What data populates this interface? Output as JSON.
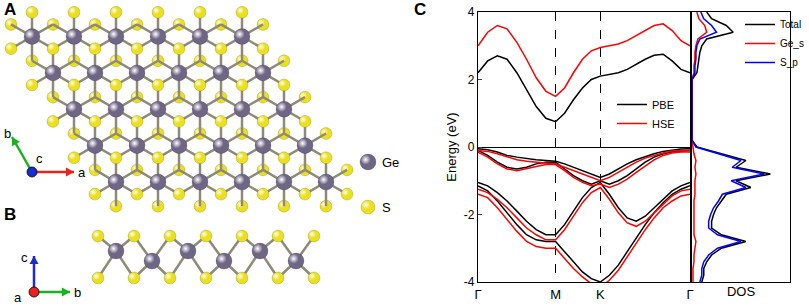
{
  "diagram": {
    "panel_labels": [
      "A",
      "B",
      "C"
    ],
    "atoms": [
      {
        "name": "Ge",
        "color": "#6f6585"
      },
      {
        "name": "S",
        "color": "#ece01d"
      }
    ],
    "top_view_axes": [
      "a",
      "b",
      "c"
    ],
    "side_view_axes": [
      "a",
      "b",
      "c"
    ]
  },
  "chart_data": [
    {
      "type": "line",
      "y_label": "Energy (eV)",
      "x": [
        0,
        0.072,
        0.144,
        0.216,
        0.289,
        0.361,
        0.433,
        0.505,
        0.577,
        0.644,
        0.71,
        0.777,
        0.843,
        0.91,
        0.977,
        1.044,
        1.11,
        1.177,
        1.244,
        1.31,
        1.377,
        1.444,
        1.51,
        1.577
      ],
      "xlim": [
        0,
        1.577
      ],
      "xticks": [
        {
          "value": 0,
          "label": "Γ"
        },
        {
          "value": 0.577,
          "label": "M"
        },
        {
          "value": 0.91,
          "label": "K"
        },
        {
          "value": 1.577,
          "label": "Γ"
        }
      ],
      "ylim": [
        -4,
        4
      ],
      "yticks": [
        -4,
        -2,
        0,
        2,
        4
      ],
      "grid": "x",
      "legend": "right",
      "series": [
        {
          "name": "PBE",
          "color": "#000000",
          "bands": [
            [
              2.2,
              2.55,
              2.7,
              2.6,
              2.2,
              1.7,
              1.2,
              0.85,
              0.75,
              1.0,
              1.4,
              1.75,
              2.0,
              2.1,
              2.15,
              2.2,
              2.3,
              2.45,
              2.6,
              2.72,
              2.75,
              2.55,
              2.3,
              2.2
            ],
            [
              -0.05,
              -0.08,
              -0.15,
              -0.25,
              -0.3,
              -0.35,
              -0.38,
              -0.4,
              -0.42,
              -0.5,
              -0.6,
              -0.7,
              -0.8,
              -0.9,
              -0.8,
              -0.65,
              -0.5,
              -0.38,
              -0.28,
              -0.2,
              -0.13,
              -0.09,
              -0.06,
              -0.05
            ],
            [
              -0.1,
              -0.25,
              -0.45,
              -0.6,
              -0.65,
              -0.6,
              -0.5,
              -0.45,
              -0.45,
              -0.65,
              -0.85,
              -1.0,
              -1.1,
              -1.0,
              -1.1,
              -1.0,
              -0.85,
              -0.65,
              -0.45,
              -0.3,
              -0.2,
              -0.14,
              -0.11,
              -0.1
            ],
            [
              -1.05,
              -1.15,
              -1.35,
              -1.6,
              -1.9,
              -2.2,
              -2.45,
              -2.6,
              -2.6,
              -2.3,
              -1.9,
              -1.5,
              -1.2,
              -1.05,
              -1.4,
              -1.8,
              -2.1,
              -2.2,
              -2.05,
              -1.8,
              -1.55,
              -1.3,
              -1.15,
              -1.05
            ],
            [
              -1.15,
              -1.3,
              -1.6,
              -1.95,
              -2.3,
              -2.6,
              -2.75,
              -2.8,
              -2.8,
              -3.1,
              -3.4,
              -3.7,
              -3.9,
              -4.0,
              -3.8,
              -3.5,
              -3.1,
              -2.7,
              -2.3,
              -1.95,
              -1.65,
              -1.4,
              -1.25,
              -1.15
            ]
          ]
        },
        {
          "name": "HSE",
          "color": "#ff0000",
          "bands": [
            [
              3.0,
              3.4,
              3.6,
              3.5,
              3.1,
              2.6,
              2.05,
              1.65,
              1.5,
              1.75,
              2.2,
              2.6,
              2.85,
              2.95,
              3.0,
              3.05,
              3.15,
              3.3,
              3.45,
              3.6,
              3.65,
              3.45,
              3.15,
              3.0
            ],
            [
              -0.1,
              -0.13,
              -0.2,
              -0.3,
              -0.38,
              -0.42,
              -0.45,
              -0.48,
              -0.5,
              -0.6,
              -0.7,
              -0.8,
              -0.9,
              -1.0,
              -0.9,
              -0.75,
              -0.6,
              -0.45,
              -0.33,
              -0.25,
              -0.18,
              -0.12,
              -0.1,
              -0.1
            ],
            [
              -0.15,
              -0.3,
              -0.5,
              -0.65,
              -0.7,
              -0.65,
              -0.58,
              -0.52,
              -0.52,
              -0.7,
              -0.9,
              -1.05,
              -1.15,
              -1.1,
              -1.2,
              -1.1,
              -0.95,
              -0.75,
              -0.55,
              -0.38,
              -0.25,
              -0.18,
              -0.15,
              -0.15
            ],
            [
              -1.25,
              -1.35,
              -1.55,
              -1.8,
              -2.1,
              -2.4,
              -2.6,
              -2.75,
              -2.75,
              -2.45,
              -2.05,
              -1.65,
              -1.35,
              -1.2,
              -1.55,
              -1.95,
              -2.25,
              -2.35,
              -2.2,
              -1.95,
              -1.7,
              -1.45,
              -1.3,
              -1.25
            ],
            [
              -1.4,
              -1.5,
              -1.8,
              -2.15,
              -2.5,
              -2.8,
              -2.95,
              -3.0,
              -3.0,
              -3.3,
              -3.6,
              -3.85,
              -4.05,
              -4.15,
              -3.95,
              -3.65,
              -3.25,
              -2.85,
              -2.45,
              -2.1,
              -1.8,
              -1.6,
              -1.45,
              -1.4
            ]
          ]
        }
      ]
    },
    {
      "type": "line",
      "orientation": "horizontal",
      "x_label": "DOS",
      "tick_labels": false,
      "legend": "top right",
      "y": [
        -4,
        -3.8,
        -3.6,
        -3.4,
        -3.2,
        -3.0,
        -2.8,
        -2.6,
        -2.4,
        -2.2,
        -2.0,
        -1.8,
        -1.6,
        -1.4,
        -1.2,
        -1.0,
        -0.8,
        -0.6,
        -0.4,
        -0.2,
        0,
        0.2,
        0.4,
        0.6,
        0.8,
        1.0,
        1.2,
        1.4,
        1.6,
        1.8,
        2.0,
        2.2,
        2.4,
        2.6,
        2.8,
        3.0,
        3.2,
        3.4,
        3.6,
        3.8,
        4.0
      ],
      "xlim": [
        0,
        1
      ],
      "ylim": [
        -4,
        4
      ],
      "yticks": [
        -4,
        -2,
        0,
        2,
        4
      ],
      "series": [
        {
          "name": "Total",
          "color": "#000000",
          "values": [
            0.1,
            0.12,
            0.12,
            0.15,
            0.2,
            0.3,
            0.55,
            0.3,
            0.2,
            0.2,
            0.22,
            0.25,
            0.3,
            0.35,
            0.6,
            0.45,
            0.8,
            0.45,
            0.55,
            0.3,
            0.05,
            0,
            0,
            0,
            0,
            0,
            0,
            0,
            0,
            0,
            0,
            0.05,
            0.06,
            0.07,
            0.08,
            0.1,
            0.15,
            0.42,
            0.35,
            0.2,
            0.15
          ]
        },
        {
          "name": "Ge_s",
          "color": "#ff0000",
          "values": [
            0.01,
            0.01,
            0.01,
            0.02,
            0.02,
            0.03,
            0.04,
            0.02,
            0.02,
            0.02,
            0.02,
            0.02,
            0.02,
            0.03,
            0.03,
            0.03,
            0.04,
            0.03,
            0.04,
            0.02,
            0.01,
            0,
            0,
            0,
            0,
            0,
            0,
            0,
            0,
            0,
            0,
            0.02,
            0.02,
            0.03,
            0.03,
            0.04,
            0.06,
            0.15,
            0.13,
            0.07,
            0.05
          ]
        },
        {
          "name": "S_p",
          "color": "#0000ff",
          "values": [
            0.08,
            0.1,
            0.1,
            0.12,
            0.17,
            0.26,
            0.5,
            0.26,
            0.17,
            0.17,
            0.19,
            0.22,
            0.27,
            0.31,
            0.55,
            0.4,
            0.74,
            0.41,
            0.5,
            0.27,
            0.04,
            0,
            0,
            0,
            0,
            0,
            0,
            0,
            0,
            0,
            0,
            0.03,
            0.03,
            0.04,
            0.04,
            0.05,
            0.08,
            0.25,
            0.2,
            0.12,
            0.09
          ]
        }
      ]
    }
  ]
}
